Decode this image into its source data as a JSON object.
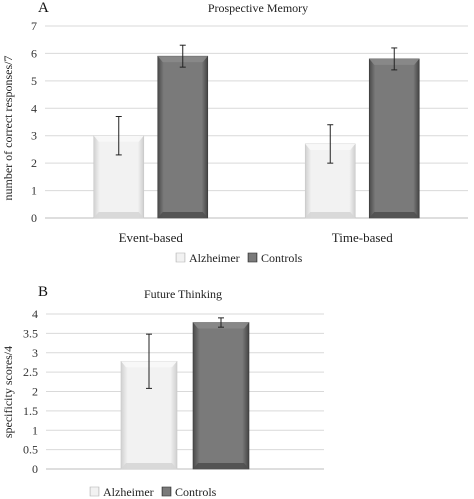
{
  "chart_data": [
    {
      "type": "bar",
      "panel_label": "A",
      "title": "Prospective Memory",
      "ylabel": "number of correct responses/7",
      "categories": [
        "Event-based",
        "Time-based"
      ],
      "series": [
        {
          "name": "Alzheimer",
          "values": [
            3.0,
            2.7
          ],
          "error": [
            0.7,
            0.7
          ],
          "color": "#e4e4e4"
        },
        {
          "name": "Controls",
          "values": [
            5.9,
            5.8
          ],
          "error": [
            0.4,
            0.4
          ],
          "color": "#6a6a6a"
        }
      ],
      "ylim": [
        0,
        7
      ],
      "yticks": [
        "0",
        "1",
        "2",
        "3",
        "4",
        "5",
        "6",
        "7"
      ],
      "grid": true,
      "legend": "bottom"
    },
    {
      "type": "bar",
      "panel_label": "B",
      "title": "Future Thinking",
      "ylabel": "specificity scores/4",
      "categories": [
        ""
      ],
      "series": [
        {
          "name": "Alzheimer",
          "values": [
            2.78
          ],
          "error": [
            0.7
          ],
          "color": "#e4e4e4"
        },
        {
          "name": "Controls",
          "values": [
            3.78
          ],
          "error": [
            0.12
          ],
          "color": "#6a6a6a"
        }
      ],
      "ylim": [
        0,
        4
      ],
      "yticks": [
        "0",
        "0.5",
        "1",
        "1.5",
        "2",
        "2.5",
        "3",
        "3.5",
        "4"
      ],
      "grid": true,
      "legend": "bottom"
    }
  ]
}
